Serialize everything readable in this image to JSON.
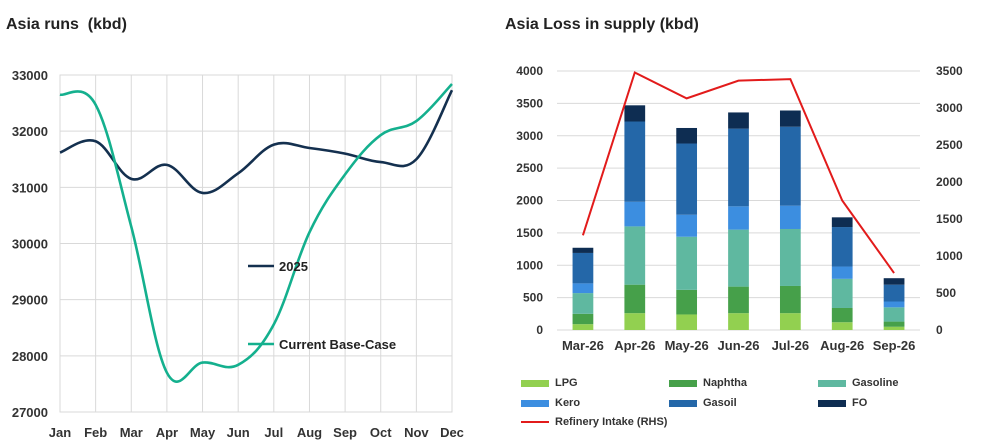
{
  "chart_data": [
    {
      "type": "line",
      "title": "Asia runs  (kbd)",
      "x": [
        "Jan",
        "Feb",
        "Mar",
        "Apr",
        "May",
        "Jun",
        "Jul",
        "Aug",
        "Sep",
        "Oct",
        "Nov",
        "Dec"
      ],
      "ylim": [
        27000,
        33000
      ],
      "yticks": [
        27000,
        28000,
        29000,
        30000,
        31000,
        32000,
        33000
      ],
      "grid": true,
      "series": [
        {
          "name": "2025",
          "color": "#14304f",
          "values": [
            31620,
            31820,
            31150,
            31400,
            30900,
            31250,
            31760,
            31700,
            31600,
            31450,
            31500,
            32730
          ]
        },
        {
          "name": "Current Base-Case",
          "color": "#14b08e",
          "values": [
            32650,
            32470,
            30300,
            27700,
            27880,
            27840,
            28560,
            30200,
            31230,
            31930,
            32180,
            32840
          ]
        }
      ],
      "legend": "inline labels"
    },
    {
      "type": "bar",
      "title": "Asia Loss in supply (kbd)",
      "stacked": true,
      "categories": [
        "Mar-26",
        "Apr-26",
        "May-26",
        "Jun-26",
        "Jul-26",
        "Aug-26",
        "Sep-26"
      ],
      "ylim": [
        0,
        4000
      ],
      "yticks": [
        0,
        500,
        1000,
        1500,
        2000,
        2500,
        3000,
        3500,
        4000
      ],
      "y2lim": [
        0,
        3500
      ],
      "y2ticks": [
        0,
        500,
        1000,
        1500,
        2000,
        2500,
        3000,
        3500
      ],
      "grid": true,
      "series": [
        {
          "name": "LPG",
          "color": "#92d050",
          "values": [
            90,
            260,
            240,
            260,
            260,
            120,
            50
          ]
        },
        {
          "name": "Naphtha",
          "color": "#46a04a",
          "values": [
            160,
            440,
            380,
            410,
            420,
            220,
            80
          ]
        },
        {
          "name": "Gasoline",
          "color": "#5fb8a0",
          "values": [
            320,
            900,
            820,
            880,
            880,
            450,
            220
          ]
        },
        {
          "name": "Kero",
          "color": "#3c8ee0",
          "values": [
            150,
            380,
            340,
            360,
            360,
            190,
            90
          ]
        },
        {
          "name": "Gasoil",
          "color": "#2467a8",
          "values": [
            470,
            1240,
            1100,
            1200,
            1220,
            610,
            260
          ]
        },
        {
          "name": "FO",
          "color": "#0e2d52",
          "values": [
            80,
            250,
            240,
            250,
            250,
            150,
            100
          ]
        }
      ],
      "line_series": {
        "name": "Refinery Intake (RHS)",
        "color": "#e21b1b",
        "axis": "right",
        "values": [
          1280,
          3480,
          3130,
          3370,
          3390,
          1750,
          770
        ]
      },
      "legend": "bottom"
    }
  ]
}
